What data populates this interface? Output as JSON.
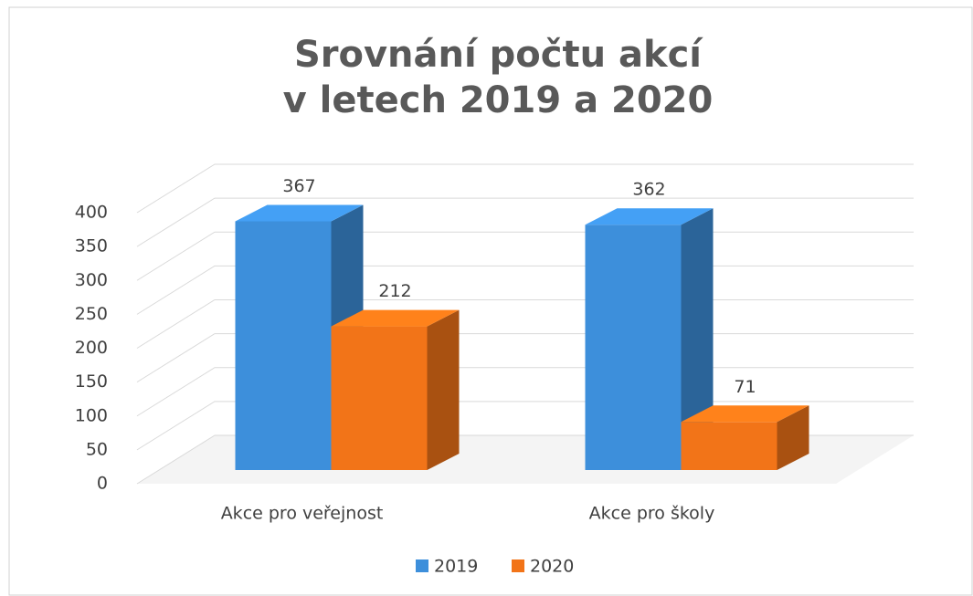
{
  "chart_data": {
    "type": "bar3d",
    "title": [
      "Srovnání počtu akcí",
      "v letech 2019 a 2020"
    ],
    "categories": [
      "Akce pro veřejnost",
      "Akce pro školy"
    ],
    "series": [
      {
        "name": "2019",
        "color": "#3d8fdb",
        "values": [
          367,
          362
        ]
      },
      {
        "name": "2020",
        "color": "#f27418",
        "values": [
          212,
          71
        ]
      }
    ],
    "ylim": [
      0,
      400
    ],
    "yticks": [
      0,
      50,
      100,
      150,
      200,
      250,
      300,
      350,
      400
    ],
    "grid": true,
    "legend": "bottom"
  }
}
